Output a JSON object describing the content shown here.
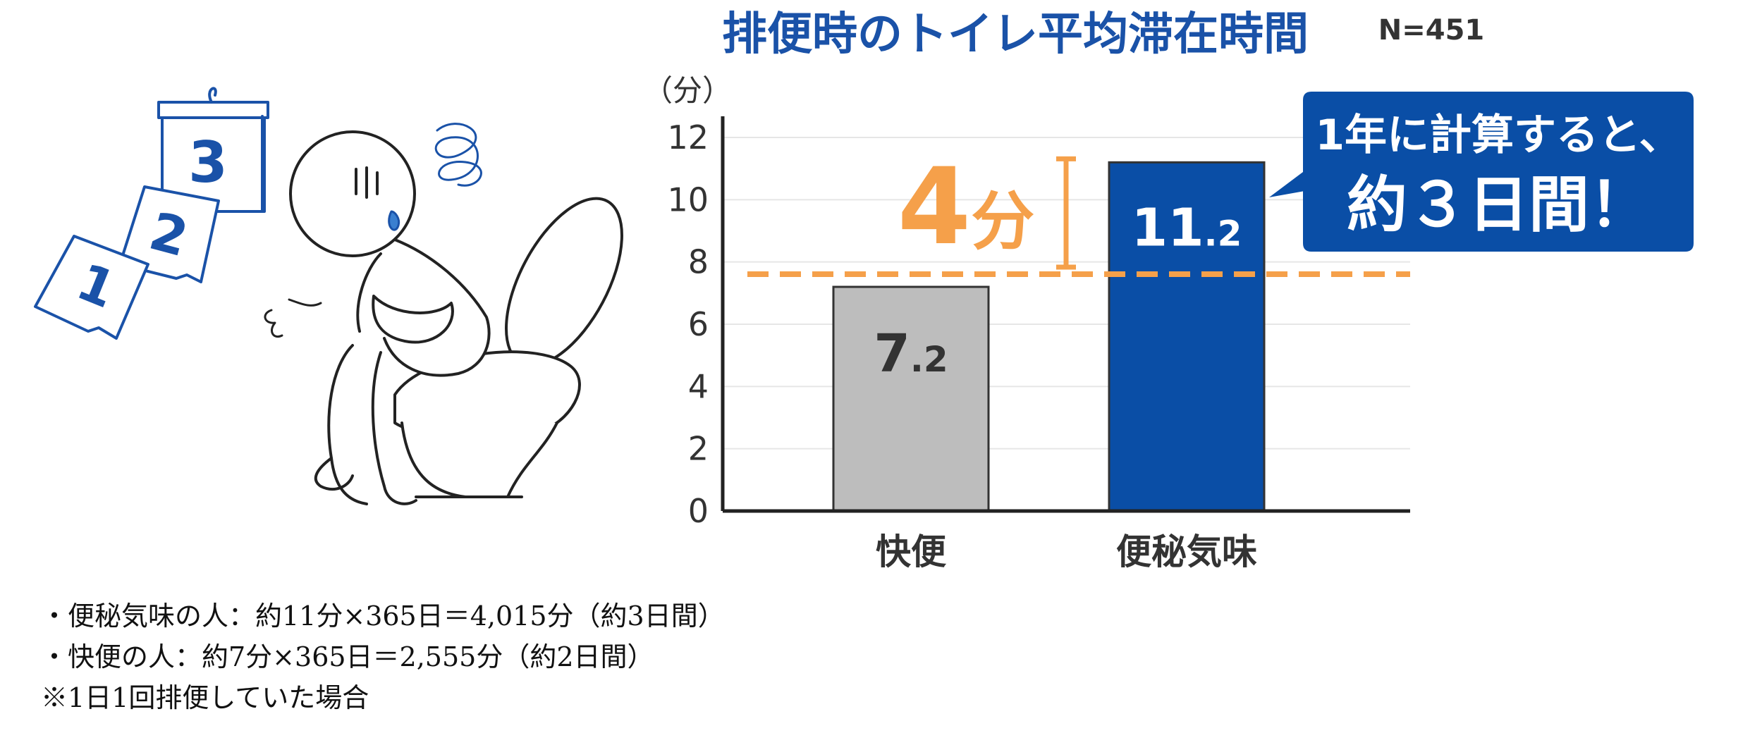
{
  "colors": {
    "blue": "#0a4ea6",
    "title_blue": "#1a52a8",
    "gray_bar": "#bdbdbd",
    "orange": "#f5a04a",
    "axis": "#222222",
    "grid": "#e6e6e6",
    "text": "#333333"
  },
  "chart_data": {
    "type": "bar",
    "title": "排便時のトイレ平均滞在時間",
    "sample_size": "N=451",
    "ylabel": "（分）",
    "ylim": [
      0,
      12
    ],
    "yticks": [
      "0",
      "2",
      "4",
      "6",
      "8",
      "10",
      "12"
    ],
    "categories": [
      "快便",
      "便秘気味"
    ],
    "values": [
      7.2,
      11.2
    ],
    "value_labels": [
      {
        "int": "7",
        "dec": ".2"
      },
      {
        "int": "11",
        "dec": ".2"
      }
    ],
    "grid": true,
    "reference_line": 7.2,
    "difference_label": {
      "number": "4",
      "unit": "分"
    },
    "callout": {
      "line1": "1年に計算すると、",
      "line2": "約３日間！"
    }
  },
  "notes": [
    "・便秘気味の人：約11分×365日＝4,015分（約3日間）",
    "・快便の人：約7分×365日＝2,555分（約2日間）",
    "※1日1回排便していた場合"
  ],
  "illustration": {
    "name": "person-on-toilet-illustration",
    "calendar_pages": [
      "1",
      "2",
      "3"
    ]
  }
}
